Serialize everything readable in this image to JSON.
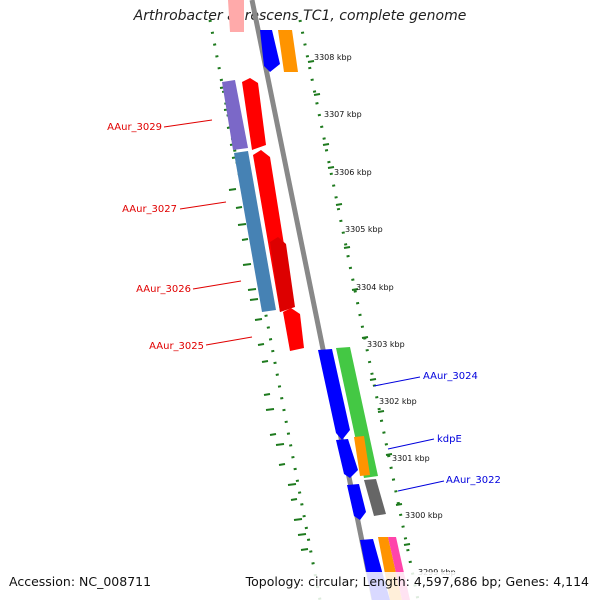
{
  "title": "Arthrobacter aurescens TC1, complete genome",
  "footer": {
    "accession": "Accession: NC_008711",
    "topology": "Topology: circular; Length: 4,597,686 bp; Genes: 4,114"
  },
  "ticks": [
    {
      "label": "3308 kbp",
      "kbp": 3308
    },
    {
      "label": "3307 kbp",
      "kbp": 3307
    },
    {
      "label": "3306 kbp",
      "kbp": 3306
    },
    {
      "label": "3305 kbp",
      "kbp": 3305
    },
    {
      "label": "3304 kbp",
      "kbp": 3304
    },
    {
      "label": "3303 kbp",
      "kbp": 3303
    },
    {
      "label": "3302 kbp",
      "kbp": 3302
    },
    {
      "label": "3301 kbp",
      "kbp": 3301
    },
    {
      "label": "3300 kbp",
      "kbp": 3300
    },
    {
      "label": "3299 kbp",
      "kbp": 3299
    }
  ],
  "gene_labels_minus": [
    {
      "text": "AAur_3029",
      "color": "#e00000"
    },
    {
      "text": "AAur_3027",
      "color": "#e00000"
    },
    {
      "text": "AAur_3026",
      "color": "#e00000"
    },
    {
      "text": "AAur_3025",
      "color": "#e00000"
    }
  ],
  "gene_labels_plus": [
    {
      "text": "AAur_3024",
      "color": "#0000dd"
    },
    {
      "text": "kdpE",
      "color": "#0000dd"
    },
    {
      "text": "AAur_3022",
      "color": "#0000dd"
    }
  ],
  "colors": {
    "backbone": "#888888",
    "gc_dots": "#1e7a1e",
    "minus_cds": "#ff0000",
    "plus_cds": "#0000ff",
    "cog_purple": "#7b68c8",
    "cog_steelblue": "#4682b4",
    "cog_green": "#44c844",
    "cog_orange": "#ff9400",
    "cog_gray": "#666666",
    "cog_pink": "#ff44aa"
  }
}
